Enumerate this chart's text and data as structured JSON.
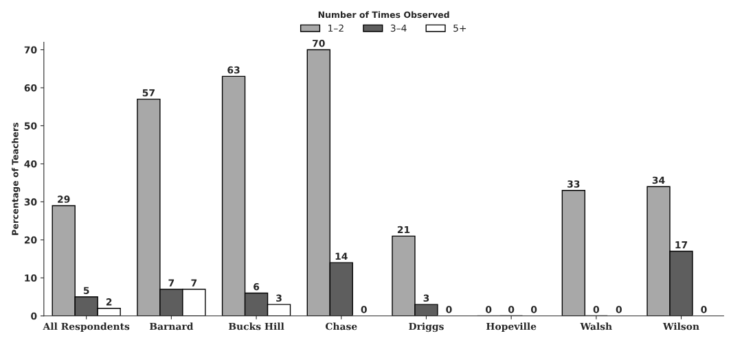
{
  "chart_data": {
    "type": "bar",
    "ylabel": "Percentage of Teachers",
    "legend_title": "Number of Times Observed",
    "categories": [
      "All Respondents",
      "Barnard",
      "Bucks Hill",
      "Chase",
      "Driggs",
      "Hopeville",
      "Walsh",
      "Wilson"
    ],
    "series": [
      {
        "name": "1–2",
        "color": "#a8a8a8",
        "values": [
          29,
          57,
          63,
          70,
          21,
          0,
          33,
          34
        ]
      },
      {
        "name": "3–4",
        "color": "#5e5e5e",
        "values": [
          5,
          7,
          6,
          14,
          3,
          0,
          0,
          17
        ]
      },
      {
        "name": "5+",
        "color": "#ffffff",
        "values": [
          2,
          7,
          3,
          0,
          0,
          0,
          0,
          0
        ]
      }
    ],
    "ylim": [
      0,
      72
    ],
    "yticks": [
      0,
      10,
      20,
      30,
      40,
      50,
      60,
      70
    ],
    "grid": false,
    "legend": "top",
    "data_labels": true
  }
}
